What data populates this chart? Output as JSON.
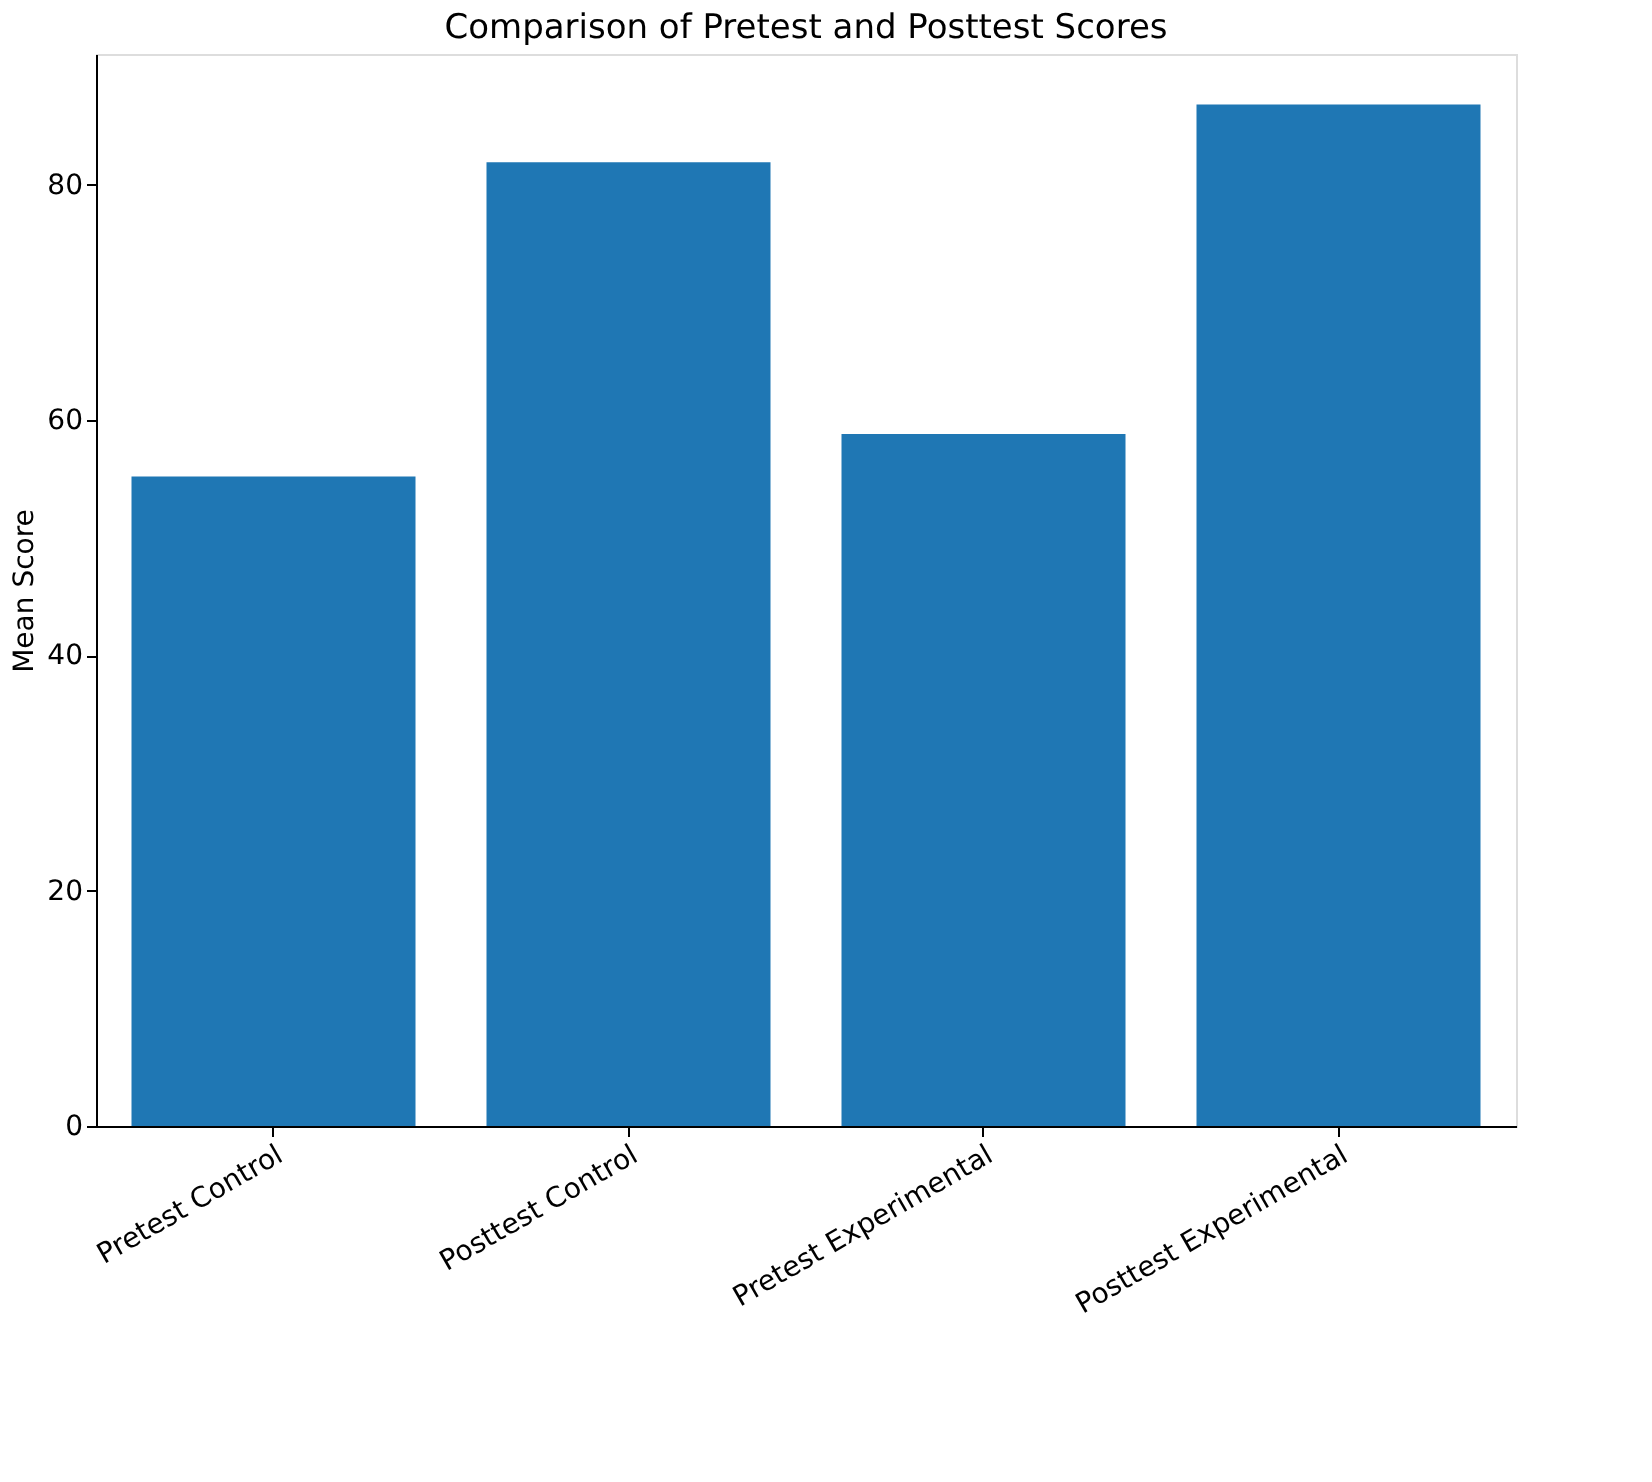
{
  "chart_data": {
    "type": "bar",
    "title": "Comparison of Pretest and Posttest Scores",
    "ylabel": "Mean Score",
    "categories": [
      "Pretest Control",
      "Posttest Control",
      "Pretest Experimental",
      "Posttest Experimental"
    ],
    "values": [
      55.2,
      81.9,
      58.8,
      86.8
    ],
    "color": "#1f77b4",
    "ylim": [
      0,
      91.1
    ],
    "yticks": [
      0,
      20,
      40,
      60,
      80
    ],
    "grid": false
  }
}
